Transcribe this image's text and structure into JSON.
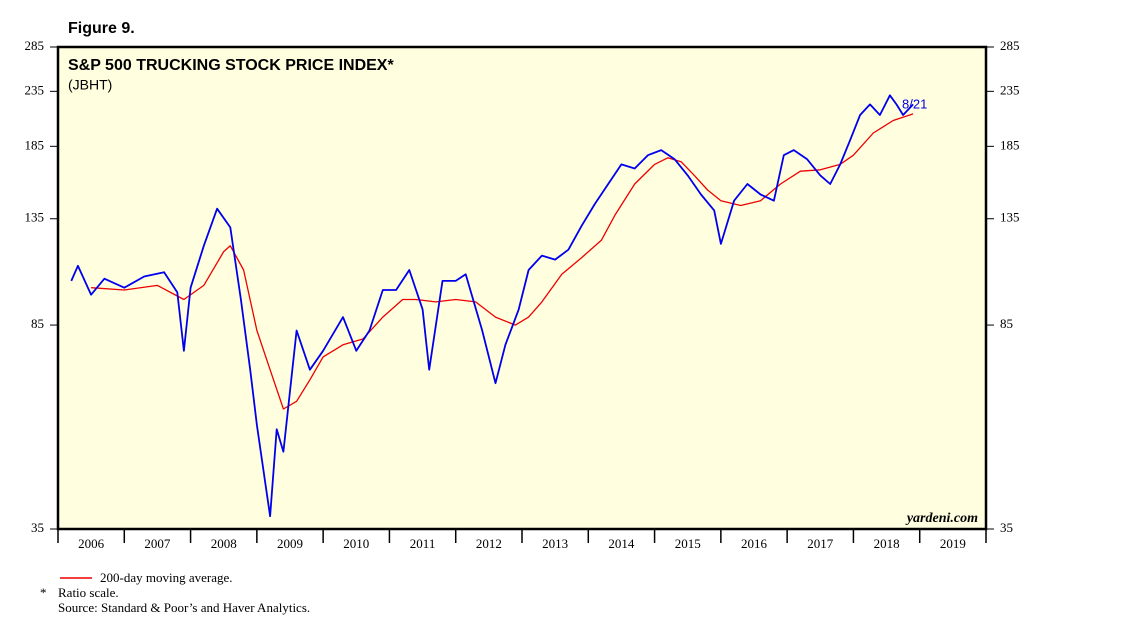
{
  "chart_data": {
    "type": "line",
    "figure_label": "Figure 9.",
    "title": "S&P 500 TRUCKING STOCK PRICE INDEX*",
    "subtitle": "(JBHT)",
    "annotation": "8/21",
    "watermark": "yardeni.com",
    "footnote_marker": "*",
    "footnote": "Ratio scale.",
    "source": "Source: Standard & Poor’s and Haver Analytics.",
    "log_scale": true,
    "ylim": [
      35,
      285
    ],
    "yticks": [
      35,
      85,
      135,
      185,
      235,
      285
    ],
    "xlim": [
      2006,
      2020
    ],
    "xticks": [
      {
        "value": 2006.5,
        "label": "2006"
      },
      {
        "value": 2007.5,
        "label": "2007"
      },
      {
        "value": 2008.5,
        "label": "2008"
      },
      {
        "value": 2009.5,
        "label": "2009"
      },
      {
        "value": 2010.5,
        "label": "2010"
      },
      {
        "value": 2011.5,
        "label": "2011"
      },
      {
        "value": 2012.5,
        "label": "2012"
      },
      {
        "value": 2013.5,
        "label": "2013"
      },
      {
        "value": 2014.5,
        "label": "2014"
      },
      {
        "value": 2015.5,
        "label": "2015"
      },
      {
        "value": 2016.5,
        "label": "2016"
      },
      {
        "value": 2017.5,
        "label": "2017"
      },
      {
        "value": 2018.5,
        "label": "2018"
      },
      {
        "value": 2019.5,
        "label": "2019"
      }
    ],
    "series": [
      {
        "color": "#0000ee",
        "x": [
          2006.2,
          2006.3,
          2006.5,
          2006.7,
          2007.0,
          2007.3,
          2007.6,
          2007.8,
          2007.9,
          2008.0,
          2008.2,
          2008.4,
          2008.6,
          2008.76,
          2008.9,
          2009.0,
          2009.2,
          2009.3,
          2009.4,
          2009.6,
          2009.8,
          2010.0,
          2010.3,
          2010.5,
          2010.7,
          2010.9,
          2011.1,
          2011.3,
          2011.5,
          2011.6,
          2011.8,
          2012.0,
          2012.15,
          2012.4,
          2012.6,
          2012.75,
          2012.95,
          2013.1,
          2013.3,
          2013.5,
          2013.7,
          2013.9,
          2014.1,
          2014.3,
          2014.5,
          2014.7,
          2014.9,
          2015.1,
          2015.3,
          2015.5,
          2015.7,
          2015.9,
          2016.0,
          2016.2,
          2016.4,
          2016.6,
          2016.8,
          2016.95,
          2017.1,
          2017.3,
          2017.5,
          2017.65,
          2017.8,
          2017.95,
          2018.1,
          2018.25,
          2018.4,
          2018.55,
          2018.65,
          2018.75,
          2018.9
        ],
        "values": [
          103,
          110,
          97,
          104,
          100,
          105,
          107,
          98,
          76,
          100,
          120,
          141,
          130,
          95,
          70,
          55,
          37,
          54,
          49,
          83,
          70,
          76,
          88,
          76,
          83,
          99,
          99,
          108,
          91,
          70,
          103,
          103,
          106,
          83,
          66,
          78,
          91,
          108,
          115,
          113,
          118,
          131,
          144,
          157,
          171,
          168,
          178,
          182,
          175,
          163,
          150,
          140,
          121,
          146,
          157,
          150,
          146,
          178,
          182,
          175,
          163,
          157,
          171,
          190,
          212,
          222,
          212,
          231,
          222,
          212,
          222
        ]
      },
      {
        "name": "200-day moving average.",
        "color": "#ee0000",
        "x": [
          2006.5,
          2007.0,
          2007.5,
          2007.9,
          2008.2,
          2008.5,
          2008.6,
          2008.8,
          2009.0,
          2009.2,
          2009.4,
          2009.6,
          2009.8,
          2010.0,
          2010.3,
          2010.6,
          2010.9,
          2011.2,
          2011.4,
          2011.7,
          2012.0,
          2012.3,
          2012.6,
          2012.9,
          2013.1,
          2013.3,
          2013.6,
          2013.9,
          2014.2,
          2014.4,
          2014.7,
          2015.0,
          2015.2,
          2015.4,
          2015.6,
          2015.8,
          2016.0,
          2016.3,
          2016.6,
          2016.9,
          2017.2,
          2017.5,
          2017.8,
          2018.0,
          2018.3,
          2018.6,
          2018.9
        ],
        "values": [
          100,
          99,
          101,
          95,
          101,
          117,
          120,
          108,
          83,
          70,
          59,
          61,
          67,
          74,
          78,
          80,
          88,
          95,
          95,
          94,
          95,
          94,
          88,
          85,
          88,
          94,
          106,
          114,
          123,
          137,
          157,
          171,
          176,
          173,
          163,
          153,
          146,
          143,
          146,
          157,
          166,
          167,
          171,
          178,
          196,
          207,
          213
        ]
      }
    ]
  }
}
